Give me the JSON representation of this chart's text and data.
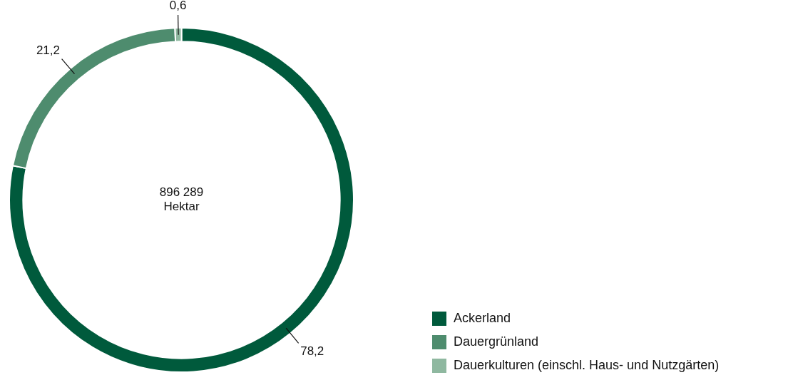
{
  "chart_data": {
    "type": "donut",
    "categories": [
      "Ackerland",
      "Dauergrünland",
      "Dauerkulturen (einschl. Haus- und Nutzgärten)"
    ],
    "values": [
      78.2,
      21.2,
      0.6
    ],
    "colors": [
      "#005a3c",
      "#4e8c6e",
      "#8fb8a0"
    ],
    "value_labels": [
      "78,2",
      "21,2",
      "0,6"
    ],
    "annotations": [
      "896 289\nHektar"
    ],
    "legend": "bottom right"
  }
}
